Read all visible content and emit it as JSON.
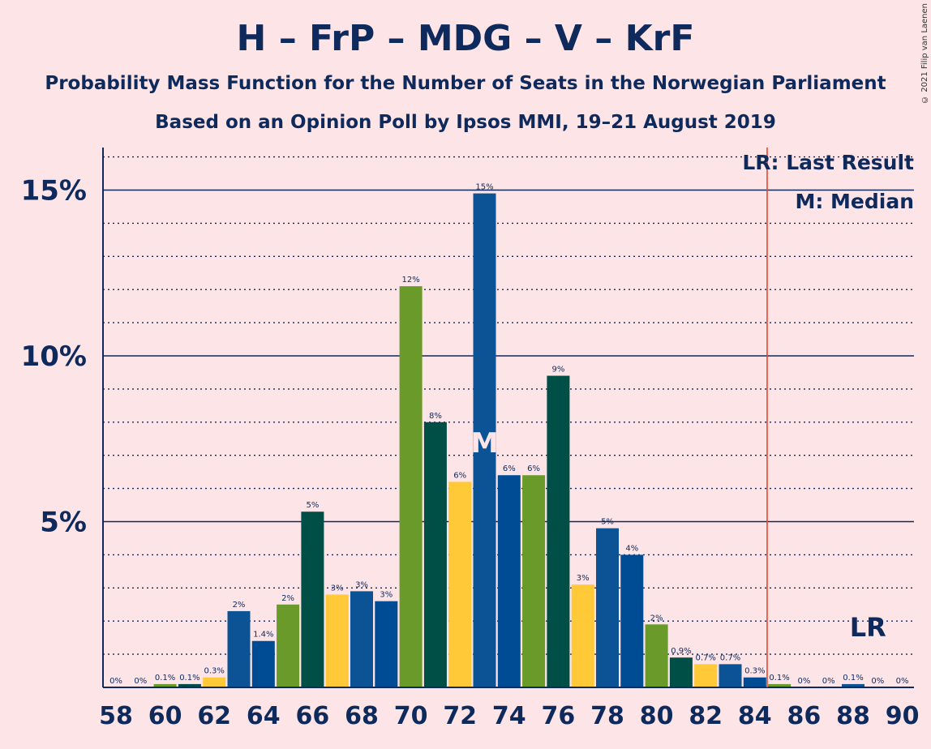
{
  "header": {
    "title": "H – FrP – MDG – V – KrF",
    "subtitle1": "Probability Mass Function for the Number of Seats in the Norwegian Parliament",
    "subtitle2": "Based on an Opinion Poll by Ipsos MMI, 19–21 August 2019",
    "copyright": "© 2021 Filip van Laenen"
  },
  "legend": {
    "last_result": "LR: Last Result",
    "median": "M: Median"
  },
  "markers": {
    "median_seat": 73,
    "median_label": "M",
    "last_result_seat": 85,
    "lr_label": "LR",
    "lr_label_seat": 89
  },
  "colors": {
    "background": "#FDE4E6",
    "text": "#0E2A5C",
    "lr_line": "#E8442A",
    "bar_cycle": [
      "#0B5394",
      "#004C94",
      "#6A9A2A",
      "#004F46",
      "#FFC938"
    ]
  },
  "chart_data": {
    "type": "bar",
    "title": "H – FrP – MDG – V – KrF",
    "xlabel": "",
    "ylabel": "",
    "x": [
      58,
      59,
      60,
      61,
      62,
      63,
      64,
      65,
      66,
      67,
      68,
      69,
      70,
      71,
      72,
      73,
      74,
      75,
      76,
      77,
      78,
      79,
      80,
      81,
      82,
      83,
      84,
      85,
      86,
      87,
      88,
      89,
      90
    ],
    "values": [
      0,
      0,
      0.1,
      0.1,
      0.3,
      2.3,
      1.4,
      2.5,
      5.3,
      2.8,
      2.9,
      2.6,
      12.1,
      8.0,
      6.2,
      14.9,
      6.4,
      6.4,
      9.4,
      3.1,
      4.8,
      4.0,
      1.9,
      0.9,
      0.7,
      0.7,
      0.3,
      0.1,
      0,
      0,
      0.1,
      0,
      0
    ],
    "labels": [
      "0%",
      "0%",
      "0.1%",
      "0.1%",
      "0.3%",
      "2%",
      "1.4%",
      "2%",
      "5%",
      "3%",
      "3%",
      "3%",
      "12%",
      "8%",
      "6%",
      "15%",
      "6%",
      "6%",
      "9%",
      "3%",
      "5%",
      "4%",
      "2%",
      "0.9%",
      "0.7%",
      "0.7%",
      "0.3%",
      "0.1%",
      "0%",
      "0%",
      "0.1%",
      "0%",
      "0%"
    ],
    "x_tick_labels": [
      "58",
      "60",
      "62",
      "64",
      "66",
      "68",
      "70",
      "72",
      "74",
      "76",
      "78",
      "80",
      "82",
      "84",
      "86",
      "88",
      "90"
    ],
    "y_tick_labels": [
      "5%",
      "10%",
      "15%"
    ],
    "y_ticks": [
      5,
      10,
      15
    ],
    "ylim": [
      0,
      16.5
    ],
    "grid": true
  }
}
